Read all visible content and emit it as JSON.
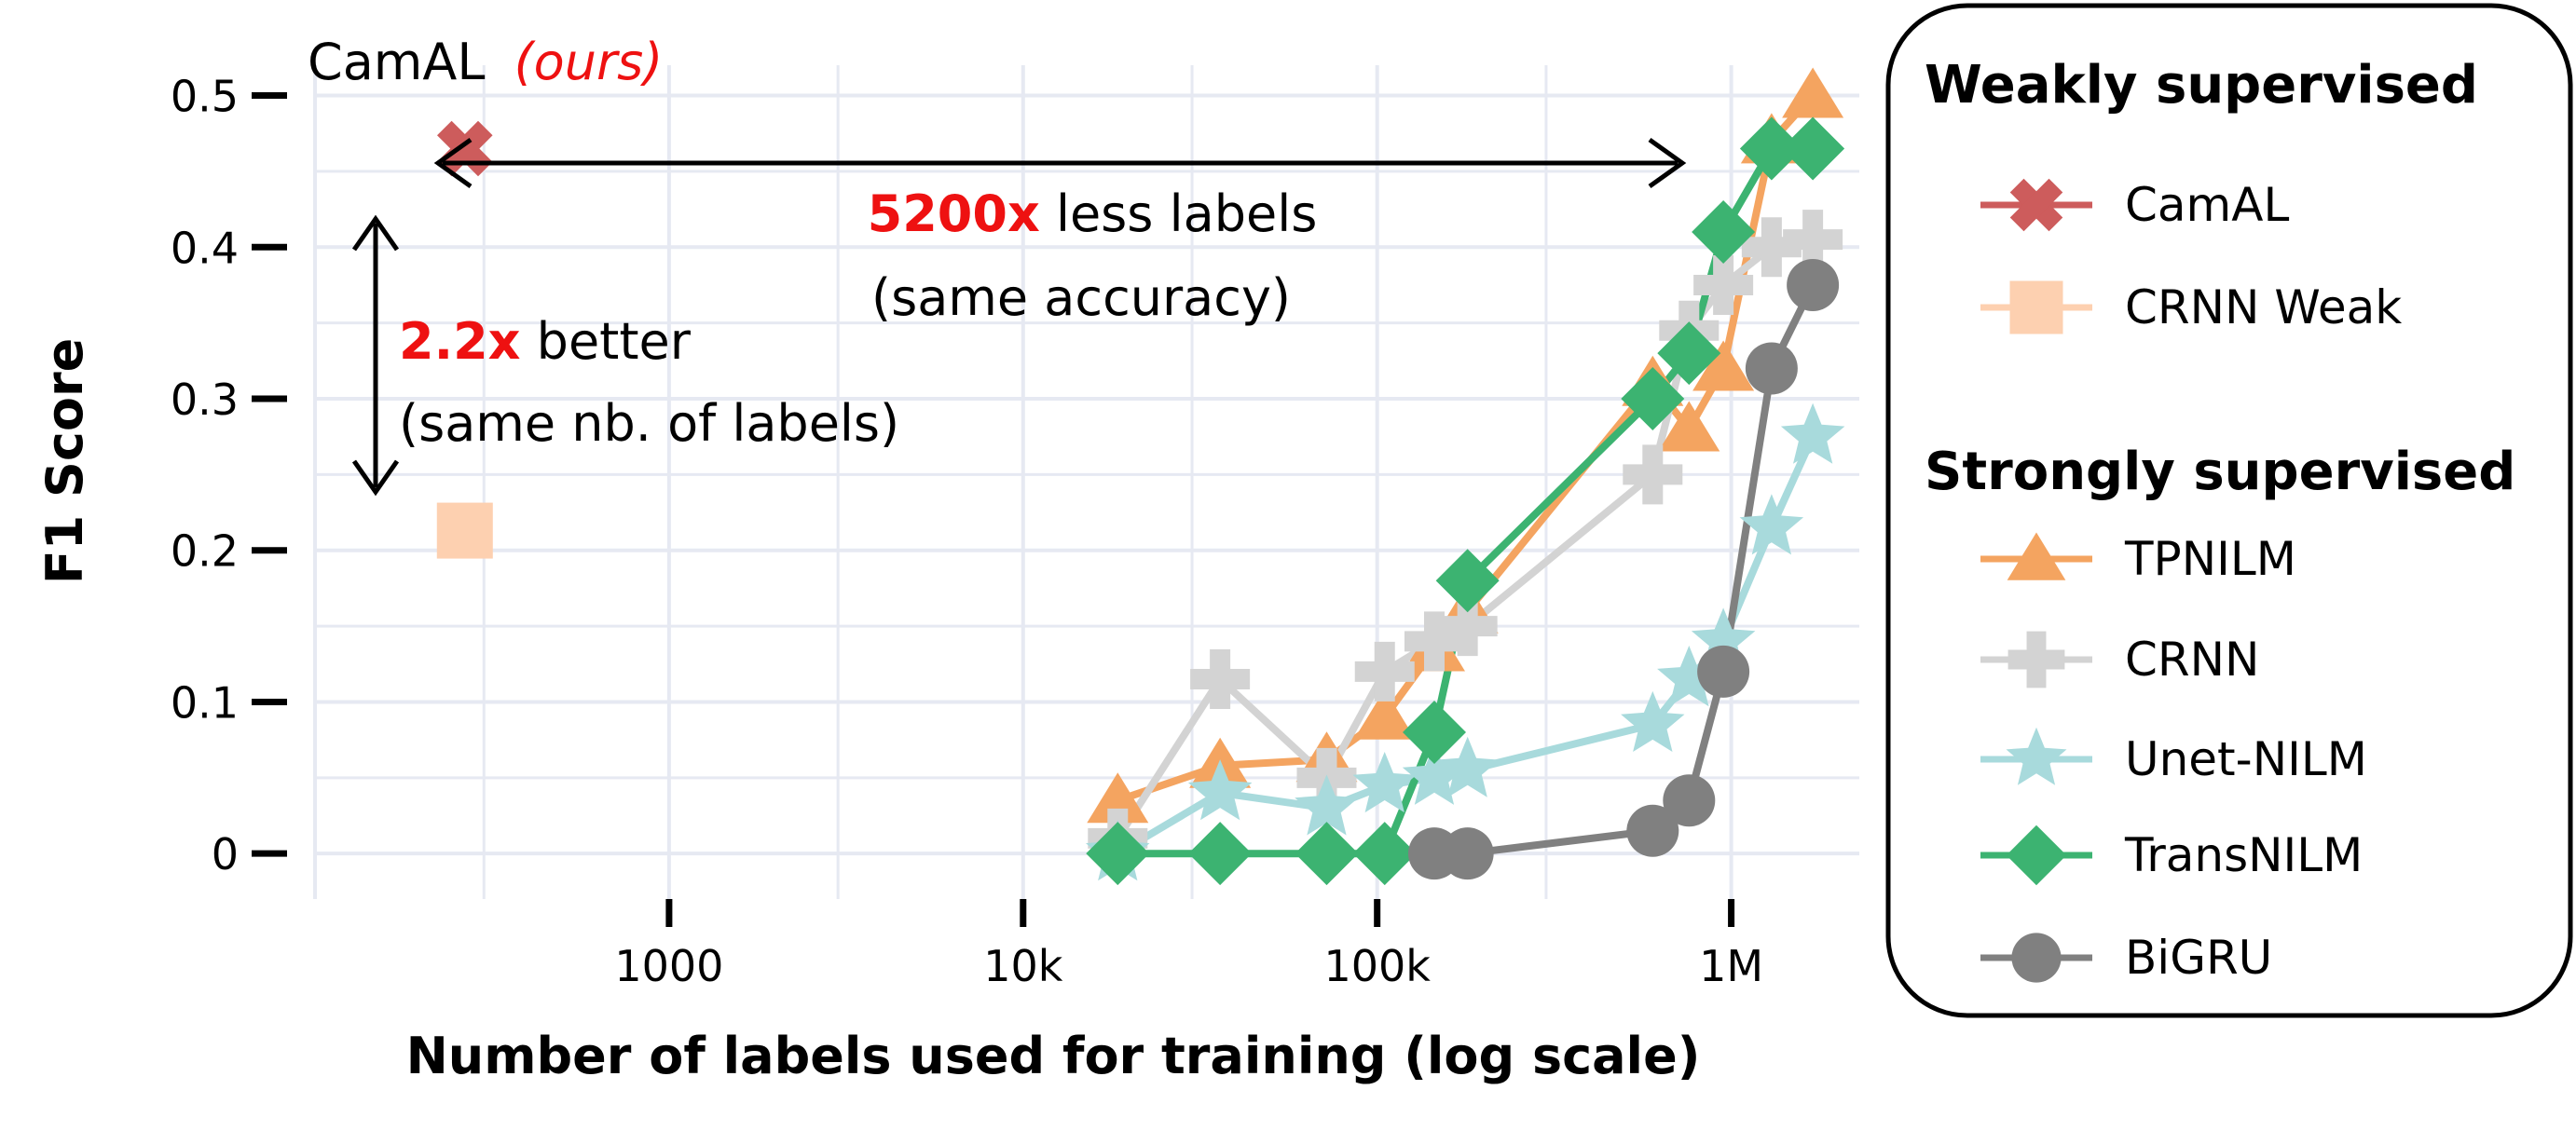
{
  "chart_data": {
    "type": "line",
    "xlabel": "Number of labels used for training (log scale)",
    "ylabel": "F1 Score",
    "x_scale": "log",
    "xlim": [
      100,
      2300000
    ],
    "ylim": [
      -0.03,
      0.52
    ],
    "x_ticks": [
      {
        "value": 1000,
        "label": "1000"
      },
      {
        "value": 10000,
        "label": "10k"
      },
      {
        "value": 100000,
        "label": "100k"
      },
      {
        "value": 1000000,
        "label": "1M"
      }
    ],
    "y_ticks": [
      {
        "value": 0,
        "label": "0"
      },
      {
        "value": 0.1,
        "label": "0.1"
      },
      {
        "value": 0.2,
        "label": "0.2"
      },
      {
        "value": 0.3,
        "label": "0.3"
      },
      {
        "value": 0.4,
        "label": "0.4"
      },
      {
        "value": 0.5,
        "label": "0.5"
      }
    ],
    "grid": true,
    "legend_position": "right",
    "legend_groups": [
      {
        "title": "Weakly supervised",
        "items": [
          "CamAL",
          "CRNN Weak"
        ]
      },
      {
        "title": "Strongly supervised",
        "items": [
          "TPNILM",
          "CRNN",
          "Unet-NILM",
          "TransNILM",
          "BiGRU"
        ]
      }
    ],
    "series": [
      {
        "name": "CamAL",
        "color": "#cd5c5c",
        "marker": "x",
        "line": false,
        "points": [
          [
            265,
            0.465
          ]
        ]
      },
      {
        "name": "CRNN Weak",
        "color": "#fdd0b0",
        "marker": "square",
        "line": false,
        "points": [
          [
            265,
            0.213
          ]
        ]
      },
      {
        "name": "TPNILM",
        "color": "#f4a460",
        "marker": "triangle",
        "line": true,
        "points": [
          [
            18500,
            0.035
          ],
          [
            36000,
            0.058
          ],
          [
            72000,
            0.062
          ],
          [
            105000,
            0.09
          ],
          [
            145000,
            0.135
          ],
          [
            180000,
            0.16
          ],
          [
            600000,
            0.31
          ],
          [
            760000,
            0.28
          ],
          [
            950000,
            0.32
          ],
          [
            1300000,
            0.47
          ],
          [
            1700000,
            0.5
          ]
        ]
      },
      {
        "name": "CRNN",
        "color": "#d3d3d3",
        "marker": "plus",
        "line": true,
        "points": [
          [
            18500,
            0.01
          ],
          [
            36000,
            0.115
          ],
          [
            72000,
            0.05
          ],
          [
            105000,
            0.12
          ],
          [
            145000,
            0.14
          ],
          [
            180000,
            0.15
          ],
          [
            600000,
            0.25
          ],
          [
            760000,
            0.345
          ],
          [
            950000,
            0.375
          ],
          [
            1300000,
            0.4
          ],
          [
            1700000,
            0.405
          ]
        ]
      },
      {
        "name": "Unet-NILM",
        "color": "#a8dadc",
        "marker": "star",
        "line": true,
        "points": [
          [
            18500,
            0.0
          ],
          [
            36000,
            0.04
          ],
          [
            72000,
            0.03
          ],
          [
            105000,
            0.045
          ],
          [
            145000,
            0.05
          ],
          [
            180000,
            0.055
          ],
          [
            600000,
            0.085
          ],
          [
            760000,
            0.115
          ],
          [
            950000,
            0.14
          ],
          [
            1300000,
            0.215
          ],
          [
            1700000,
            0.275
          ]
        ]
      },
      {
        "name": "TransNILM",
        "color": "#3cb371",
        "marker": "diamond",
        "line": true,
        "points": [
          [
            18500,
            0.0
          ],
          [
            36000,
            0.0
          ],
          [
            72000,
            0.0
          ],
          [
            105000,
            0.0
          ],
          [
            145000,
            0.08
          ],
          [
            180000,
            0.18
          ],
          [
            600000,
            0.3
          ],
          [
            760000,
            0.33
          ],
          [
            950000,
            0.41
          ],
          [
            1300000,
            0.465
          ],
          [
            1700000,
            0.465
          ]
        ]
      },
      {
        "name": "BiGRU",
        "color": "#808080",
        "marker": "circle",
        "line": true,
        "points": [
          [
            145000,
            0.0
          ],
          [
            180000,
            0.0
          ],
          [
            600000,
            0.015
          ],
          [
            760000,
            0.035
          ],
          [
            950000,
            0.12
          ],
          [
            1300000,
            0.32
          ],
          [
            1700000,
            0.375
          ]
        ]
      }
    ],
    "annotations": {
      "camal_label": "CamAL",
      "camal_ours": "(ours)",
      "ratio_labels_red": "5200x",
      "ratio_labels_text": " less labels",
      "ratio_labels_sub": "(same accuracy)",
      "ratio_better_red": "2.2x",
      "ratio_better_text": " better",
      "ratio_better_sub": "(same nb. of labels)"
    }
  }
}
